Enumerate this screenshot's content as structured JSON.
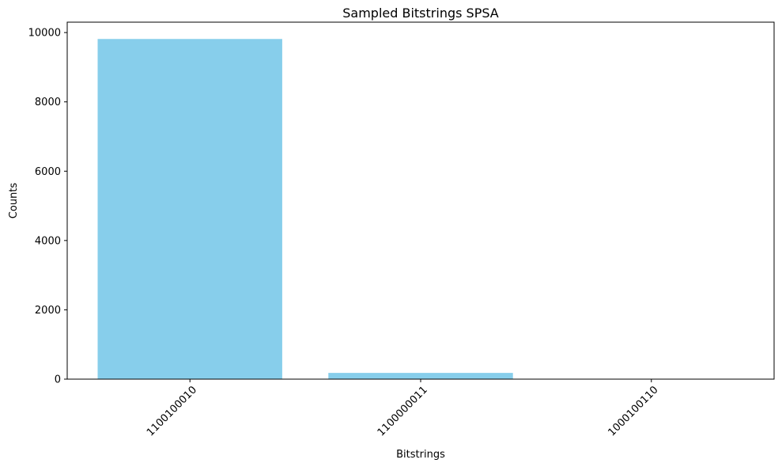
{
  "chart_data": {
    "type": "bar",
    "title": "Sampled Bitstrings SPSA",
    "xlabel": "Bitstrings",
    "ylabel": "Counts",
    "categories": [
      "1100100010",
      "1100000011",
      "1000100110"
    ],
    "values": [
      9815,
      180,
      5
    ],
    "ylim": [
      0,
      10300
    ],
    "yticks": [
      0,
      2000,
      4000,
      6000,
      8000,
      10000
    ],
    "bar_color": "#87ceeb",
    "grid": false,
    "legend": "none",
    "xtick_rotation_deg": 45
  }
}
